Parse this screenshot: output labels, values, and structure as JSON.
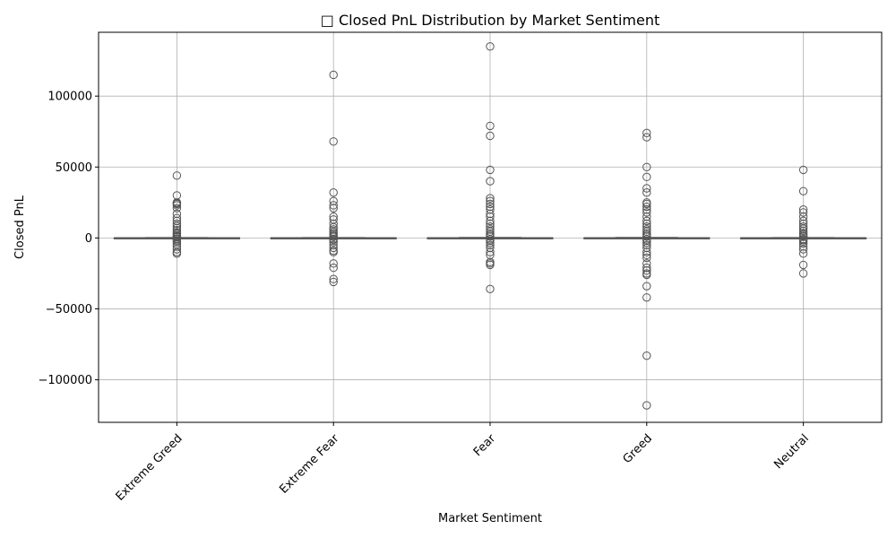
{
  "chart_data": {
    "type": "box",
    "title": "□ Closed PnL Distribution by Market Sentiment",
    "xlabel": "Market Sentiment",
    "ylabel": "Closed PnL",
    "ylim": [
      -130000,
      145000
    ],
    "yticks": [
      -100000,
      -50000,
      0,
      50000,
      100000
    ],
    "ytick_labels": [
      "−100000",
      "−50000",
      "0",
      "50000",
      "100000"
    ],
    "grid": true,
    "categories": [
      "Extreme Greed",
      "Extreme Fear",
      "Fear",
      "Greed",
      "Neutral"
    ],
    "colors": {
      "box_face": "#4c72b0",
      "line": "#555555",
      "grid": "#b0b0b0"
    },
    "series": [
      {
        "category": "Extreme Greed",
        "q1": -20,
        "median": 0,
        "q3": 60,
        "whisker_low": -200,
        "whisker_high": 250,
        "outliers": [
          44000,
          30000,
          25000,
          24500,
          24000,
          23000,
          21000,
          17000,
          14000,
          12000,
          10000,
          8500,
          7000,
          5500,
          4000,
          3000,
          2000,
          1200,
          800,
          500,
          -500,
          -1000,
          -2000,
          -3000,
          -4500,
          -6000,
          -8000,
          -10000,
          -11000
        ]
      },
      {
        "category": "Extreme Fear",
        "q1": -25,
        "median": 0,
        "q3": 55,
        "whisker_low": -220,
        "whisker_high": 240,
        "outliers": [
          115000,
          68000,
          32000,
          26000,
          23000,
          21000,
          15000,
          13000,
          10000,
          7500,
          6000,
          4500,
          3500,
          2500,
          1500,
          800,
          -800,
          -1500,
          -3000,
          -5000,
          -7000,
          -9000,
          -10000,
          -18000,
          -21000,
          -29000,
          -31000
        ]
      },
      {
        "category": "Fear",
        "q1": -30,
        "median": 0,
        "q3": 70,
        "whisker_low": -260,
        "whisker_high": 300,
        "outliers": [
          135000,
          79000,
          72000,
          48000,
          40000,
          28000,
          26000,
          24000,
          22000,
          20000,
          17000,
          15000,
          12000,
          10000,
          8000,
          6000,
          4500,
          3000,
          2000,
          1000,
          -1000,
          -2000,
          -3500,
          -5000,
          -7000,
          -10000,
          -12000,
          -17000,
          -18000,
          -19000,
          -36000
        ]
      },
      {
        "category": "Greed",
        "q1": -25,
        "median": 0,
        "q3": 65,
        "whisker_low": -240,
        "whisker_high": 280,
        "outliers": [
          74000,
          71000,
          50000,
          43000,
          35000,
          32000,
          25000,
          24000,
          22000,
          20000,
          18000,
          15000,
          12000,
          10000,
          8000,
          6000,
          4500,
          3000,
          2000,
          1000,
          -1000,
          -2000,
          -3500,
          -5000,
          -7000,
          -10000,
          -12000,
          -14000,
          -18000,
          -21000,
          -23000,
          -25000,
          -26000,
          -34000,
          -42000,
          -83000,
          -118000
        ]
      },
      {
        "category": "Neutral",
        "q1": -20,
        "median": 0,
        "q3": 50,
        "whisker_low": -190,
        "whisker_high": 220,
        "outliers": [
          48000,
          33000,
          20000,
          18000,
          15000,
          12000,
          10000,
          8000,
          6500,
          5000,
          3500,
          2500,
          1500,
          800,
          -800,
          -1500,
          -2500,
          -4000,
          -6000,
          -8000,
          -11000,
          -19000,
          -25000
        ]
      }
    ]
  }
}
